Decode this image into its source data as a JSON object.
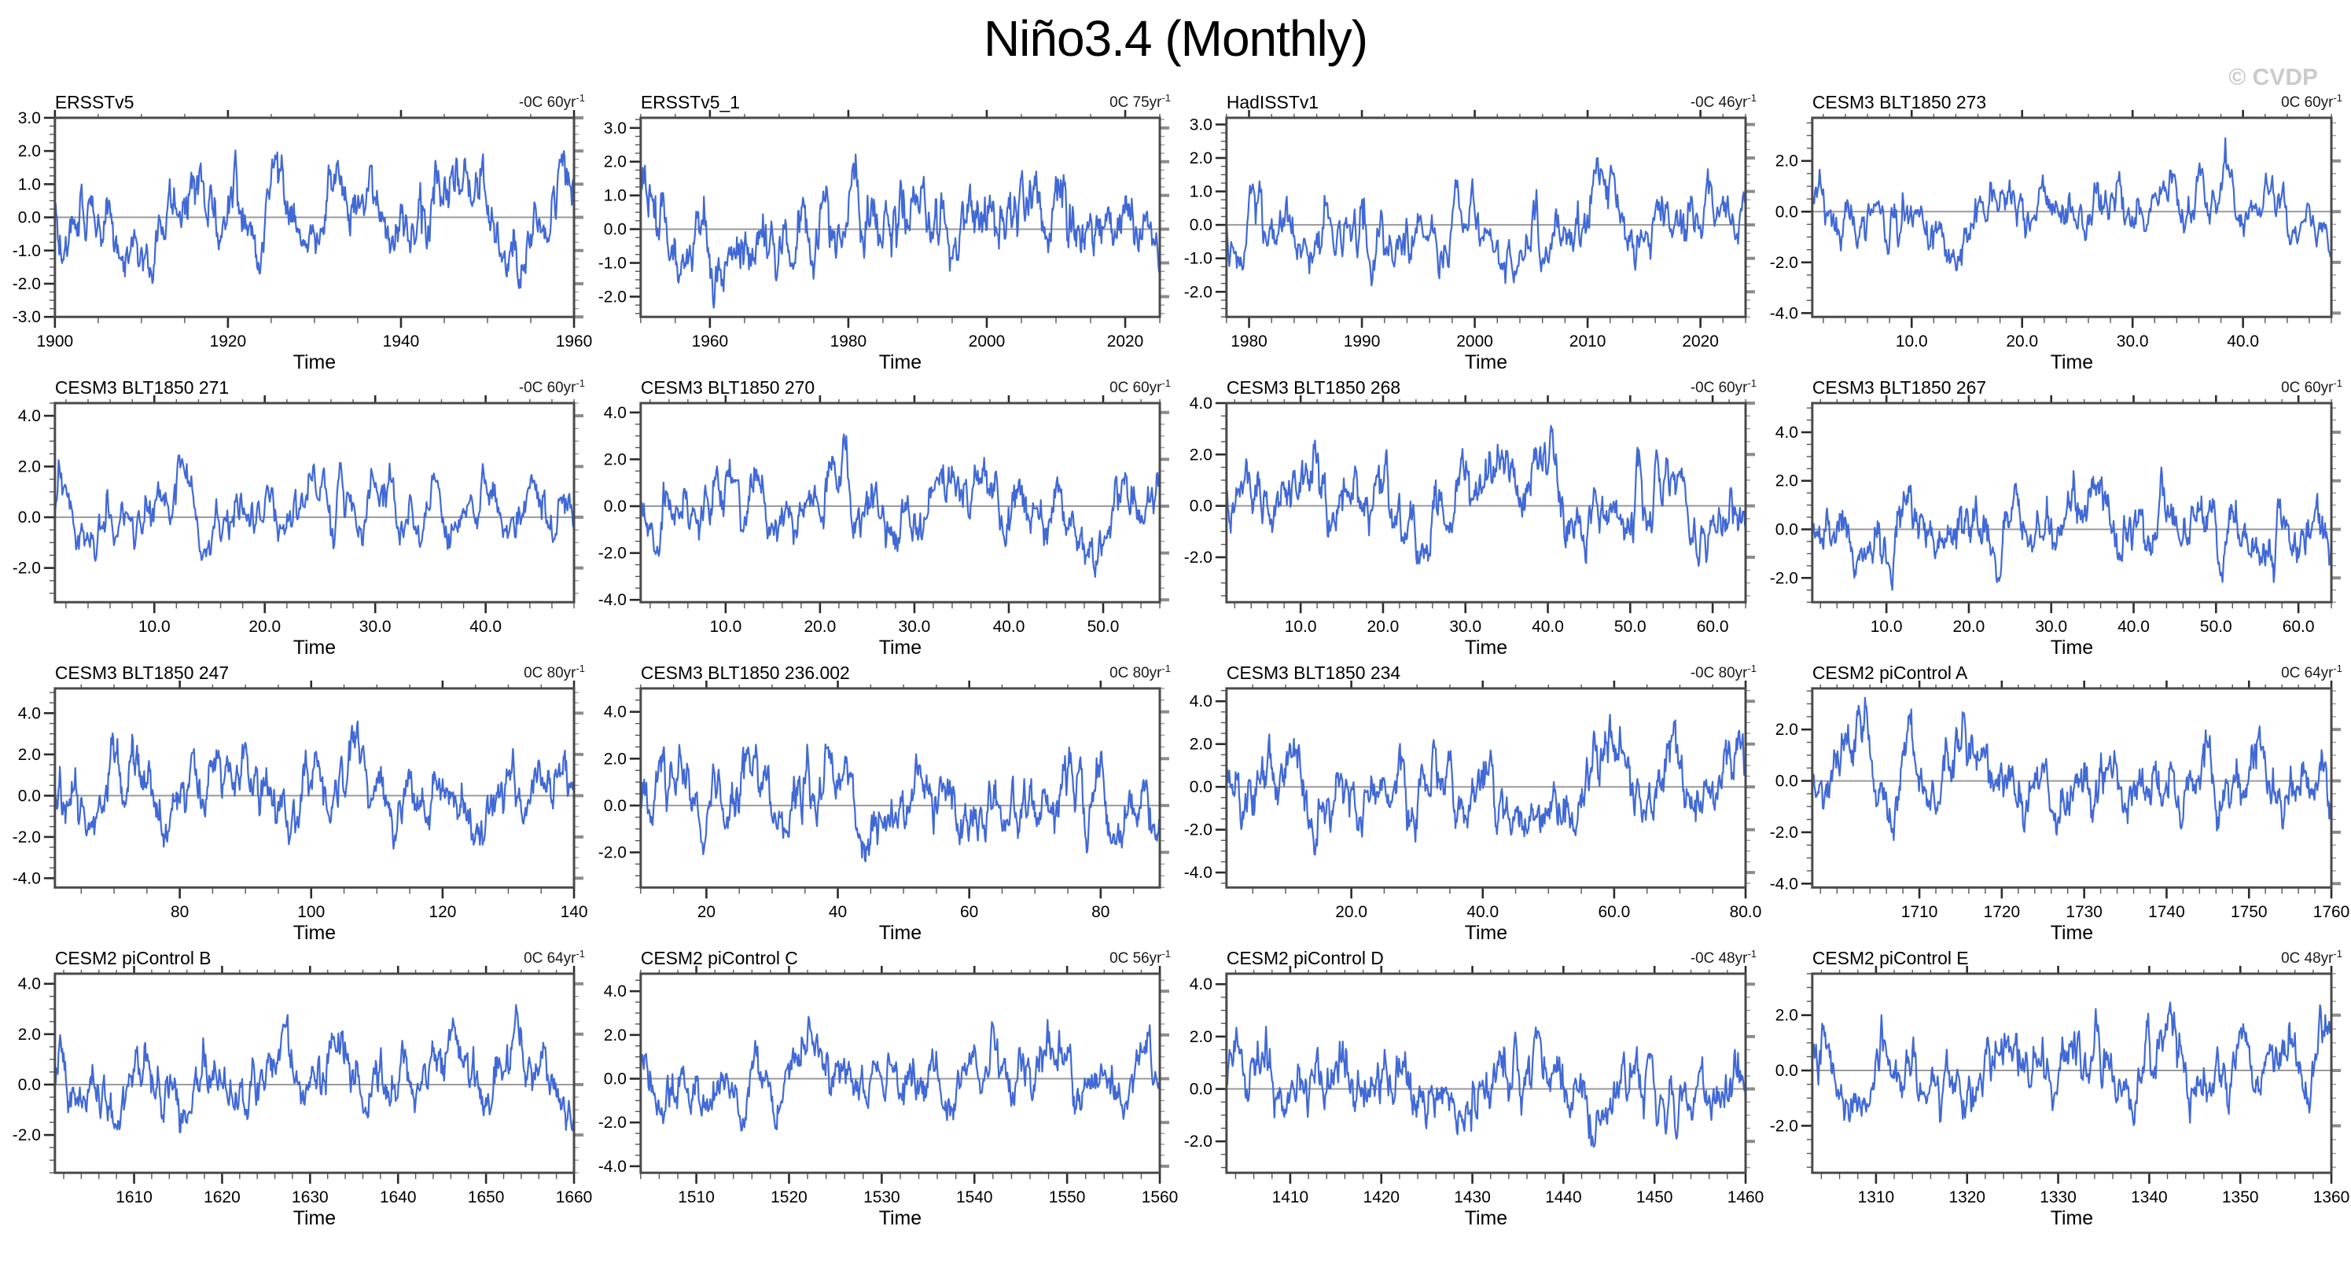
{
  "title": "Niño3.4 (Monthly)",
  "watermark": "© CVDP",
  "time_label": "Time",
  "colors": {
    "line": "#4169d6",
    "zero_line": "#9a9a9a",
    "frame": "#4a4a4a",
    "tick_major": "#2b2b2b",
    "tick_minor": "#555555",
    "right_tick": "#8c8c8c",
    "watermark": "#cbcbcb",
    "background": "#ffffff"
  },
  "chart_data": [
    {
      "type": "line",
      "title": "ERSSTv5",
      "trend_base": "-0C 60yr",
      "trend_sup": "-1",
      "x": {
        "min": 1900,
        "max": 1960,
        "ticks": [
          1900,
          1920,
          1940,
          1960
        ],
        "labels": [
          "1900",
          "1920",
          "1940",
          "1960"
        ],
        "minor_step": 5,
        "label": "Time"
      },
      "y": {
        "min": -3.0,
        "max": 3.0,
        "ticks": [
          3,
          2,
          1,
          0,
          -1,
          -2,
          -3
        ],
        "labels": [
          "3.0",
          "2.0",
          "1.0",
          "0.0",
          "-1.0",
          "-2.0",
          "-3.0"
        ],
        "minor_step": 0.25
      },
      "series": {
        "seed": 101,
        "n": 720,
        "amp": 1.0,
        "ar": 0.92,
        "note": "approximate reconstruction of monthly Nino3.4 anomalies, range about -2.3 to 2.5"
      }
    },
    {
      "type": "line",
      "title": "ERSSTv5_1",
      "trend_base": "0C 75yr",
      "trend_sup": "-1",
      "x": {
        "min": 1950,
        "max": 2025,
        "ticks": [
          1960,
          1980,
          2000,
          2020
        ],
        "labels": [
          "1960",
          "1980",
          "2000",
          "2020"
        ],
        "minor_step": 5,
        "label": "Time"
      },
      "y": {
        "min": -2.6,
        "max": 3.3,
        "ticks": [
          3,
          2,
          1,
          0,
          -1,
          -2
        ],
        "labels": [
          "3.0",
          "2.0",
          "1.0",
          "0.0",
          "-1.0",
          "-2.0"
        ],
        "minor_step": 0.25
      },
      "series": {
        "seed": 102,
        "n": 740,
        "amp": 1.05,
        "ar": 0.92,
        "note": "approximate, peaks near 2.7 in 2016"
      }
    },
    {
      "type": "line",
      "title": "HadISSTv1",
      "trend_base": "-0C 46yr",
      "trend_sup": "-1",
      "x": {
        "min": 1978,
        "max": 2024,
        "ticks": [
          1980,
          1990,
          2000,
          2010,
          2020
        ],
        "labels": [
          "1980",
          "1990",
          "2000",
          "2010",
          "2020"
        ],
        "minor_step": 2,
        "label": "Time"
      },
      "y": {
        "min": -2.75,
        "max": 3.2,
        "ticks": [
          3,
          2,
          1,
          0,
          -1,
          -2
        ],
        "labels": [
          "3.0",
          "2.0",
          "1.0",
          "0.0",
          "-1.0",
          "-2.0"
        ],
        "minor_step": 0.25
      },
      "series": {
        "seed": 103,
        "n": 552,
        "amp": 1.05,
        "ar": 0.92,
        "note": "approximate, peaks near 2.7, troughs near -2.3"
      }
    },
    {
      "type": "line",
      "title": "CESM3 BLT1850 273",
      "trend_base": "0C 60yr",
      "trend_sup": "-1",
      "x": {
        "min": 1,
        "max": 48,
        "ticks": [
          10,
          20,
          30,
          40
        ],
        "labels": [
          "10.0",
          "20.0",
          "30.0",
          "40.0"
        ],
        "minor_step": 2,
        "label": "Time"
      },
      "y": {
        "min": -4.15,
        "max": 3.7,
        "ticks": [
          2,
          0,
          -2,
          -4
        ],
        "labels": [
          "2.0",
          "0.0",
          "-2.0",
          "-4.0"
        ],
        "minor_step": 0.5
      },
      "series": {
        "seed": 104,
        "n": 564,
        "amp": 1.15,
        "ar": 0.92,
        "note": "approximate, max about 3.5, min about -3.7"
      }
    },
    {
      "type": "line",
      "title": "CESM3 BLT1850 271",
      "trend_base": "-0C 60yr",
      "trend_sup": "-1",
      "x": {
        "min": 1,
        "max": 48,
        "ticks": [
          10,
          20,
          30,
          40
        ],
        "labels": [
          "10.0",
          "20.0",
          "30.0",
          "40.0"
        ],
        "minor_step": 2,
        "label": "Time"
      },
      "y": {
        "min": -3.35,
        "max": 4.5,
        "ticks": [
          4,
          2,
          0,
          -2
        ],
        "labels": [
          "4.0",
          "2.0",
          "0.0",
          "-2.0"
        ],
        "minor_step": 0.5
      },
      "series": {
        "seed": 105,
        "n": 564,
        "amp": 1.2,
        "ar": 0.92,
        "note": "approximate, max about 4.1 near t=32"
      }
    },
    {
      "type": "line",
      "title": "CESM3 BLT1850 270",
      "trend_base": "0C 60yr",
      "trend_sup": "-1",
      "x": {
        "min": 1,
        "max": 56,
        "ticks": [
          10,
          20,
          30,
          40,
          50
        ],
        "labels": [
          "10.0",
          "20.0",
          "30.0",
          "40.0",
          "50.0"
        ],
        "minor_step": 2,
        "label": "Time"
      },
      "y": {
        "min": -4.1,
        "max": 4.4,
        "ticks": [
          4,
          2,
          0,
          -2,
          -4
        ],
        "labels": [
          "4.0",
          "2.0",
          "0.0",
          "-2.0",
          "-4.0"
        ],
        "minor_step": 0.5
      },
      "series": {
        "seed": 106,
        "n": 660,
        "amp": 1.3,
        "ar": 0.92,
        "note": "approximate, max about 3.9, min about -3.5"
      }
    },
    {
      "type": "line",
      "title": "CESM3 BLT1850 268",
      "trend_base": "-0C 60yr",
      "trend_sup": "-1",
      "x": {
        "min": 1,
        "max": 64,
        "ticks": [
          10,
          20,
          30,
          40,
          50,
          60
        ],
        "labels": [
          "10.0",
          "20.0",
          "30.0",
          "40.0",
          "50.0",
          "60.0"
        ],
        "minor_step": 2,
        "label": "Time"
      },
      "y": {
        "min": -3.75,
        "max": 4.0,
        "ticks": [
          4,
          2,
          0,
          -2
        ],
        "labels": [
          "4.0",
          "2.0",
          "0.0",
          "-2.0"
        ],
        "minor_step": 0.5
      },
      "series": {
        "seed": 107,
        "n": 740,
        "amp": 1.15,
        "ar": 0.92,
        "note": "approximate, max about 3.6, min about -3.4"
      }
    },
    {
      "type": "line",
      "title": "CESM3 BLT1850 267",
      "trend_base": "0C 60yr",
      "trend_sup": "-1",
      "x": {
        "min": 1,
        "max": 64,
        "ticks": [
          10,
          20,
          30,
          40,
          50,
          60
        ],
        "labels": [
          "10.0",
          "20.0",
          "30.0",
          "40.0",
          "50.0",
          "60.0"
        ],
        "minor_step": 2,
        "label": "Time"
      },
      "y": {
        "min": -3.0,
        "max": 5.2,
        "ticks": [
          4,
          2,
          0,
          -2
        ],
        "labels": [
          "4.0",
          "2.0",
          "0.0",
          "-2.0"
        ],
        "minor_step": 0.5
      },
      "series": {
        "seed": 108,
        "n": 740,
        "amp": 1.2,
        "ar": 0.92,
        "note": "approximate, large spikes near 4.9 and 4.3 early in record"
      }
    },
    {
      "type": "line",
      "title": "CESM3 BLT1850 247",
      "trend_base": "0C 80yr",
      "trend_sup": "-1",
      "x": {
        "min": 61,
        "max": 140,
        "ticks": [
          80,
          100,
          120,
          140
        ],
        "labels": [
          "80",
          "100",
          "120",
          "140"
        ],
        "minor_step": 5,
        "label": "Time"
      },
      "y": {
        "min": -4.45,
        "max": 5.2,
        "ticks": [
          4,
          2,
          0,
          -2,
          -4
        ],
        "labels": [
          "4.0",
          "2.0",
          "0.0",
          "-2.0",
          "-4.0"
        ],
        "minor_step": 0.5
      },
      "series": {
        "seed": 109,
        "n": 740,
        "amp": 1.45,
        "ar": 0.92,
        "note": "approximate, max about 4.9, min about -3.7"
      }
    },
    {
      "type": "line",
      "title": "CESM3 BLT1850 236.002",
      "trend_base": "0C 80yr",
      "trend_sup": "-1",
      "x": {
        "min": 10,
        "max": 89,
        "ticks": [
          20,
          40,
          60,
          80
        ],
        "labels": [
          "20",
          "40",
          "60",
          "80"
        ],
        "minor_step": 5,
        "label": "Time"
      },
      "y": {
        "min": -3.5,
        "max": 5.0,
        "ticks": [
          4,
          2,
          0,
          -2
        ],
        "labels": [
          "4.0",
          "2.0",
          "0.0",
          "-2.0"
        ],
        "minor_step": 0.5
      },
      "series": {
        "seed": 110,
        "n": 740,
        "amp": 1.3,
        "ar": 0.92,
        "note": "approximate, max about 4.85 near t=69"
      }
    },
    {
      "type": "line",
      "title": "CESM3 BLT1850 234",
      "trend_base": "-0C 80yr",
      "trend_sup": "-1",
      "x": {
        "min": 1,
        "max": 80,
        "ticks": [
          20,
          40,
          60,
          80
        ],
        "labels": [
          "20.0",
          "40.0",
          "60.0",
          "80.0"
        ],
        "minor_step": 5,
        "label": "Time"
      },
      "y": {
        "min": -4.7,
        "max": 4.6,
        "ticks": [
          4,
          2,
          0,
          -2,
          -4
        ],
        "labels": [
          "4.0",
          "2.0",
          "0.0",
          "-2.0",
          "-4.0"
        ],
        "minor_step": 0.5
      },
      "series": {
        "seed": 111,
        "n": 740,
        "amp": 1.45,
        "ar": 0.92,
        "note": "approximate, max about 4.1, min about -4.0"
      }
    },
    {
      "type": "line",
      "title": "CESM2 piControl A",
      "trend_base": "0C 64yr",
      "trend_sup": "-1",
      "x": {
        "min": 1697,
        "max": 1760,
        "ticks": [
          1710,
          1720,
          1730,
          1740,
          1750,
          1760
        ],
        "labels": [
          "1710",
          "1720",
          "1730",
          "1740",
          "1750",
          "1760"
        ],
        "minor_step": 2,
        "label": "Time"
      },
      "y": {
        "min": -4.15,
        "max": 3.6,
        "ticks": [
          2,
          0,
          -2,
          -4
        ],
        "labels": [
          "2.0",
          "0.0",
          "-2.0",
          "-4.0"
        ],
        "minor_step": 0.5
      },
      "series": {
        "seed": 112,
        "n": 740,
        "amp": 1.2,
        "ar": 0.92,
        "note": "approximate, min about -3.6 near 1735"
      }
    },
    {
      "type": "line",
      "title": "CESM2 piControl B",
      "trend_base": "0C 64yr",
      "trend_sup": "-1",
      "x": {
        "min": 1601,
        "max": 1660,
        "ticks": [
          1610,
          1620,
          1630,
          1640,
          1650,
          1660
        ],
        "labels": [
          "1610",
          "1620",
          "1630",
          "1640",
          "1650",
          "1660"
        ],
        "minor_step": 2,
        "label": "Time"
      },
      "y": {
        "min": -3.5,
        "max": 4.4,
        "ticks": [
          4,
          2,
          0,
          -2
        ],
        "labels": [
          "4.0",
          "2.0",
          "0.0",
          "-2.0"
        ],
        "minor_step": 0.5
      },
      "series": {
        "seed": 113,
        "n": 708,
        "amp": 1.15,
        "ar": 0.92,
        "note": "approximate, max about 3.95 near 1630"
      }
    },
    {
      "type": "line",
      "title": "CESM2 piControl C",
      "trend_base": "0C 56yr",
      "trend_sup": "-1",
      "x": {
        "min": 1504,
        "max": 1560,
        "ticks": [
          1510,
          1520,
          1530,
          1540,
          1550,
          1560
        ],
        "labels": [
          "1510",
          "1520",
          "1530",
          "1540",
          "1550",
          "1560"
        ],
        "minor_step": 2,
        "label": "Time"
      },
      "y": {
        "min": -4.3,
        "max": 4.8,
        "ticks": [
          4,
          2,
          0,
          -2,
          -4
        ],
        "labels": [
          "4.0",
          "2.0",
          "0.0",
          "-2.0",
          "-4.0"
        ],
        "minor_step": 0.5
      },
      "series": {
        "seed": 114,
        "n": 672,
        "amp": 1.35,
        "ar": 0.92,
        "note": "approximate, max about 4.4 near 1504, min about -3.6"
      }
    },
    {
      "type": "line",
      "title": "CESM2 piControl D",
      "trend_base": "-0C 48yr",
      "trend_sup": "-1",
      "x": {
        "min": 1403,
        "max": 1460,
        "ticks": [
          1410,
          1420,
          1430,
          1440,
          1450,
          1460
        ],
        "labels": [
          "1410",
          "1420",
          "1430",
          "1440",
          "1450",
          "1460"
        ],
        "minor_step": 2,
        "label": "Time"
      },
      "y": {
        "min": -3.2,
        "max": 4.4,
        "ticks": [
          4,
          2,
          0,
          -2
        ],
        "labels": [
          "4.0",
          "2.0",
          "0.0",
          "-2.0"
        ],
        "minor_step": 0.5
      },
      "series": {
        "seed": 115,
        "n": 684,
        "amp": 1.25,
        "ar": 0.92,
        "note": "approximate, max about 3.8 near 1451"
      }
    },
    {
      "type": "line",
      "title": "CESM2 piControl E",
      "trend_base": "0C 48yr",
      "trend_sup": "-1",
      "x": {
        "min": 1303,
        "max": 1360,
        "ticks": [
          1310,
          1320,
          1330,
          1340,
          1350,
          1360
        ],
        "labels": [
          "1310",
          "1320",
          "1330",
          "1340",
          "1350",
          "1360"
        ],
        "minor_step": 2,
        "label": "Time"
      },
      "y": {
        "min": -3.7,
        "max": 3.5,
        "ticks": [
          2,
          0,
          -2
        ],
        "labels": [
          "2.0",
          "0.0",
          "-2.0"
        ],
        "minor_step": 0.5
      },
      "series": {
        "seed": 116,
        "n": 684,
        "amp": 1.1,
        "ar": 0.92,
        "note": "approximate, max about 3.2 near 1340, min about -3.4"
      }
    }
  ]
}
